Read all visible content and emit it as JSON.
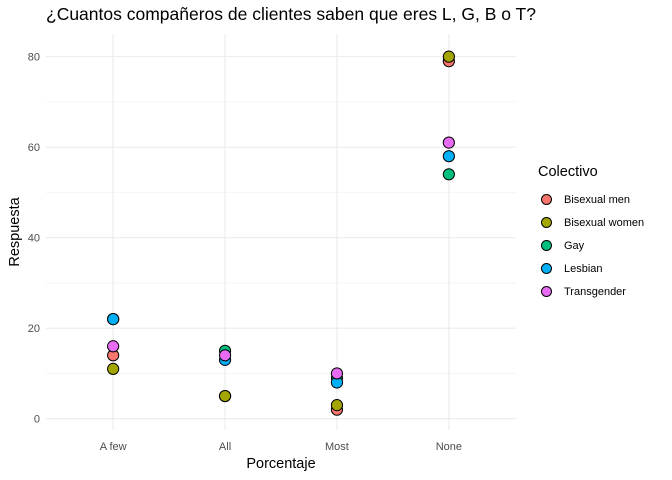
{
  "chart_data": {
    "type": "scatter",
    "title": "¿Cuantos compañeros de clientes saben que eres L, G, B o T?",
    "xlabel": "Porcentaje",
    "ylabel": "Respuesta",
    "categories": [
      "A few",
      "All",
      "Most",
      "None"
    ],
    "ylim": [
      -2.5,
      85
    ],
    "yticks": [
      0,
      20,
      40,
      60,
      80
    ],
    "grid": true,
    "legend": {
      "title": "Colectivo",
      "position": "right"
    },
    "series": [
      {
        "name": "Bisexual men",
        "color": "#F8766D",
        "values": [
          14,
          5,
          2,
          79
        ]
      },
      {
        "name": "Bisexual women",
        "color": "#A3A500",
        "values": [
          11,
          5,
          3,
          80
        ]
      },
      {
        "name": "Gay",
        "color": "#00BF7D",
        "values": [
          22,
          15,
          9,
          54
        ]
      },
      {
        "name": "Lesbian",
        "color": "#00B0F6",
        "values": [
          22,
          13,
          8,
          58
        ]
      },
      {
        "name": "Transgender",
        "color": "#E76BF3",
        "values": [
          16,
          14,
          10,
          61
        ]
      }
    ]
  }
}
